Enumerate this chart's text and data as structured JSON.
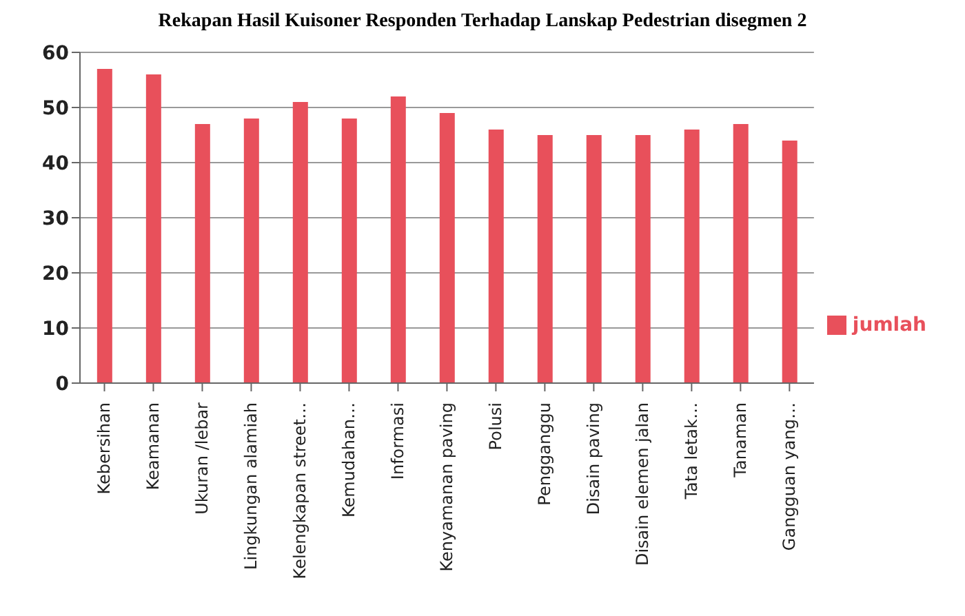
{
  "chart_data": {
    "type": "bar",
    "title": "Rekapan Hasil Kuisoner Responden Terhadap Lanskap Pedestrian disegmen 2",
    "categories": [
      "Kebersihan",
      "Keamanan",
      "Ukuran /lebar",
      "Lingkungan alamiah",
      "Kelengkapan street…",
      "Kemudahan…",
      "Informasi",
      "Kenyamanan paving",
      "Polusi",
      "Pengganggu",
      "Disain paving",
      "Disain elemen jalan",
      "Tata letak…",
      "Tanaman",
      "Gangguan yang…"
    ],
    "series": [
      {
        "name": "jumlah",
        "color": "#e8505b",
        "values": [
          57,
          56,
          47,
          48,
          51,
          48,
          52,
          49,
          46,
          45,
          45,
          45,
          46,
          47,
          44
        ]
      }
    ],
    "ylim": [
      0,
      60
    ],
    "yticks": [
      0,
      10,
      20,
      30,
      40,
      50,
      60
    ],
    "grid": "y",
    "legend": "right"
  }
}
